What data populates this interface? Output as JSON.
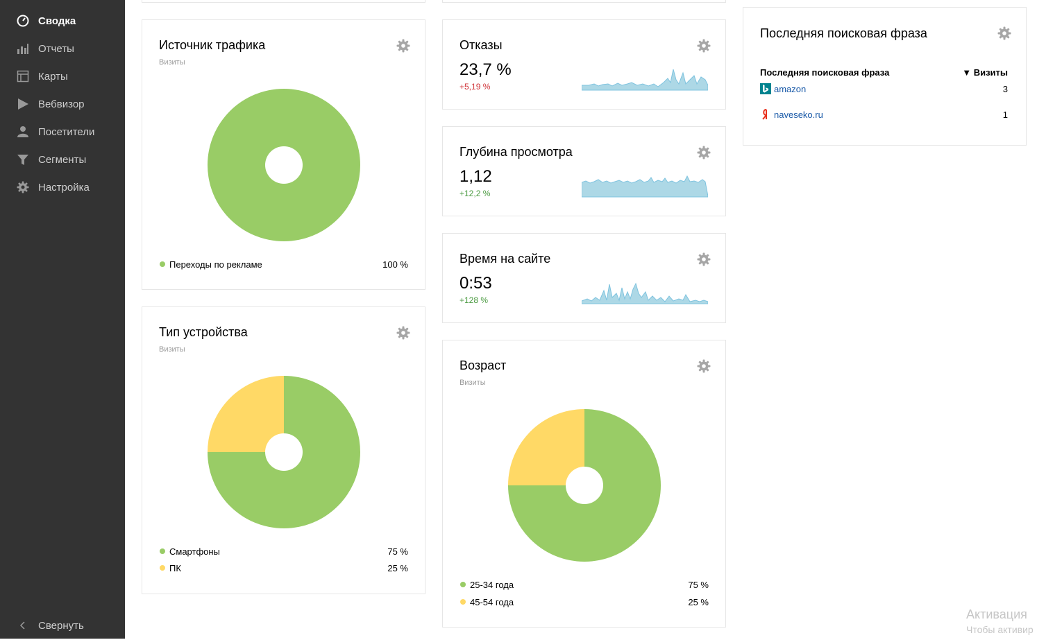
{
  "sidebar": {
    "items": [
      {
        "label": "Сводка",
        "icon": "speedometer-icon",
        "active": true
      },
      {
        "label": "Отчеты",
        "icon": "bar-chart-icon"
      },
      {
        "label": "Карты",
        "icon": "map-icon"
      },
      {
        "label": "Вебвизор",
        "icon": "play-icon"
      },
      {
        "label": "Посетители",
        "icon": "user-icon"
      },
      {
        "label": "Сегменты",
        "icon": "filter-icon"
      },
      {
        "label": "Настройка",
        "icon": "gear-icon"
      }
    ],
    "collapse_label": "Свернуть"
  },
  "colors": {
    "green": "#99cc66",
    "yellow": "#ffd966",
    "spark_fill": "#add8e6",
    "spark_line": "#7ec3df"
  },
  "traffic": {
    "title": "Источник трафика",
    "subtitle": "Визиты",
    "legend": [
      {
        "name": "Переходы по рекламе",
        "value": "100 %"
      }
    ]
  },
  "devices": {
    "title": "Тип устройства",
    "subtitle": "Визиты",
    "legend": [
      {
        "name": "Смартфоны",
        "value": "75 %"
      },
      {
        "name": "ПК",
        "value": "25 %"
      }
    ]
  },
  "bounce": {
    "title": "Отказы",
    "value": "23,7 %",
    "delta": "+5,19 %"
  },
  "depth": {
    "title": "Глубина просмотра",
    "value": "1,12",
    "delta": "+12,2 %"
  },
  "time": {
    "title": "Время на сайте",
    "value": "0:53",
    "delta": "+128 %"
  },
  "age": {
    "title": "Возраст",
    "subtitle": "Визиты",
    "legend": [
      {
        "name": "25-34 года",
        "value": "75 %"
      },
      {
        "name": "45-54 года",
        "value": "25 %"
      }
    ]
  },
  "search": {
    "title": "Последняя поисковая фраза",
    "col_phrase": "Последняя поисковая фраза",
    "col_visits": "▼ Визиты",
    "rows": [
      {
        "engine_icon": "bing-icon",
        "phrase": "amazon",
        "visits": "3"
      },
      {
        "engine_icon": "yandex-icon",
        "phrase": "naveseko.ru",
        "visits": "1"
      }
    ]
  },
  "watermark": {
    "line1": "Активация",
    "line2": "Чтобы активир"
  },
  "chart_data": [
    {
      "type": "pie",
      "title": "Источник трафика",
      "categories": [
        "Переходы по рекламе"
      ],
      "values": [
        100
      ]
    },
    {
      "type": "pie",
      "title": "Тип устройства",
      "categories": [
        "Смартфоны",
        "ПК"
      ],
      "values": [
        75,
        25
      ]
    },
    {
      "type": "pie",
      "title": "Возраст",
      "categories": [
        "25-34 года",
        "45-54 года"
      ],
      "values": [
        75,
        25
      ]
    }
  ]
}
